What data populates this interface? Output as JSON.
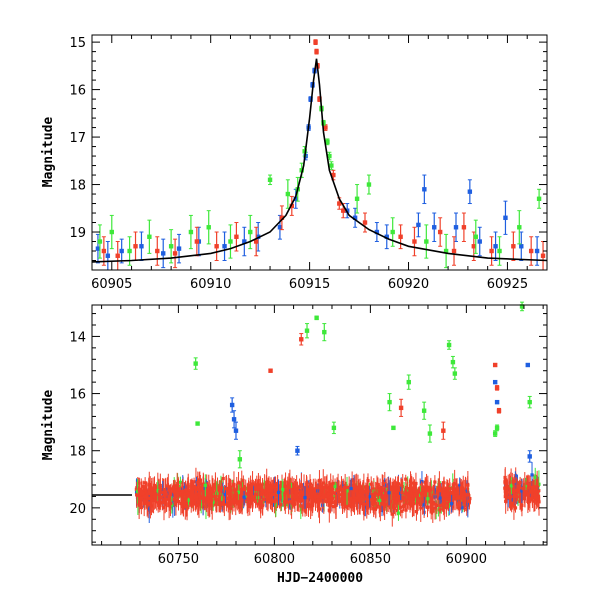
{
  "colors": {
    "blue": "#1f5fe0",
    "red": "#f0402a",
    "green": "#3ee83a",
    "axis": "#000000",
    "model": "#000000"
  },
  "chart_data": [
    {
      "type": "scatter",
      "title": "",
      "xlabel": "",
      "ylabel": "Magnitude",
      "xlim": [
        60904,
        60927
      ],
      "ylim": [
        19.8,
        14.85
      ],
      "y_inverted": true,
      "grid": false,
      "xticks": [
        60905,
        60910,
        60915,
        60920,
        60925
      ],
      "yticks": [
        15,
        16,
        17,
        18,
        19
      ],
      "model_curve": {
        "x": [
          60904,
          60906,
          60908,
          60910,
          60911,
          60912,
          60913,
          60913.8,
          60914.3,
          60914.7,
          60915.0,
          60915.2,
          60915.35,
          60915.5,
          60915.7,
          60916.0,
          60916.5,
          60917.0,
          60918.0,
          60919.0,
          60920.0,
          60922.0,
          60924.0,
          60927.0
        ],
        "y": [
          19.63,
          19.6,
          19.55,
          19.45,
          19.35,
          19.2,
          19.0,
          18.65,
          18.25,
          17.6,
          16.6,
          15.8,
          15.35,
          15.9,
          16.9,
          17.7,
          18.3,
          18.65,
          18.95,
          19.15,
          19.3,
          19.45,
          19.55,
          19.6
        ]
      },
      "series": [
        {
          "color": "blue",
          "points": [
            {
              "x": 60904.3,
              "y": 19.35,
              "err": 0.3
            },
            {
              "x": 60904.8,
              "y": 19.5,
              "err": 0.3
            },
            {
              "x": 60905.5,
              "y": 19.4,
              "err": 0.25
            },
            {
              "x": 60906.5,
              "y": 19.3,
              "err": 0.3
            },
            {
              "x": 60907.6,
              "y": 19.45,
              "err": 0.3
            },
            {
              "x": 60908.4,
              "y": 19.35,
              "err": 0.3
            },
            {
              "x": 60909.4,
              "y": 19.2,
              "err": 0.3
            },
            {
              "x": 60910.7,
              "y": 19.3,
              "err": 0.3
            },
            {
              "x": 60911.7,
              "y": 19.2,
              "err": 0.3
            },
            {
              "x": 60912.4,
              "y": 19.1,
              "err": 0.3
            },
            {
              "x": 60913.5,
              "y": 18.9,
              "err": 0.25
            },
            {
              "x": 60914.3,
              "y": 18.3,
              "err": 0.2
            },
            {
              "x": 60914.8,
              "y": 17.4,
              "err": 0.08
            },
            {
              "x": 60914.95,
              "y": 16.8,
              "err": 0.06
            },
            {
              "x": 60915.05,
              "y": 16.2,
              "err": 0.05
            },
            {
              "x": 60915.15,
              "y": 15.9,
              "err": 0.05
            },
            {
              "x": 60915.25,
              "y": 15.6,
              "err": 0.05
            },
            {
              "x": 60916.9,
              "y": 18.55,
              "err": 0.15
            },
            {
              "x": 60917.3,
              "y": 18.7,
              "err": 0.2
            },
            {
              "x": 60918.4,
              "y": 19.0,
              "err": 0.2
            },
            {
              "x": 60918.9,
              "y": 19.1,
              "err": 0.25
            },
            {
              "x": 60920.5,
              "y": 18.85,
              "err": 0.25
            },
            {
              "x": 60920.8,
              "y": 18.1,
              "err": 0.3
            },
            {
              "x": 60921.3,
              "y": 18.9,
              "err": 0.3
            },
            {
              "x": 60922.4,
              "y": 18.9,
              "err": 0.3
            },
            {
              "x": 60923.1,
              "y": 18.15,
              "err": 0.25
            },
            {
              "x": 60923.6,
              "y": 19.2,
              "err": 0.3
            },
            {
              "x": 60924.4,
              "y": 19.3,
              "err": 0.3
            },
            {
              "x": 60924.9,
              "y": 18.7,
              "err": 0.35
            },
            {
              "x": 60925.7,
              "y": 19.3,
              "err": 0.3
            },
            {
              "x": 60926.5,
              "y": 19.4,
              "err": 0.3
            }
          ]
        },
        {
          "color": "red",
          "points": [
            {
              "x": 60904.6,
              "y": 19.4,
              "err": 0.3
            },
            {
              "x": 60905.3,
              "y": 19.5,
              "err": 0.3
            },
            {
              "x": 60906.2,
              "y": 19.3,
              "err": 0.3
            },
            {
              "x": 60907.3,
              "y": 19.4,
              "err": 0.3
            },
            {
              "x": 60908.2,
              "y": 19.45,
              "err": 0.3
            },
            {
              "x": 60909.3,
              "y": 19.2,
              "err": 0.3
            },
            {
              "x": 60910.3,
              "y": 19.3,
              "err": 0.3
            },
            {
              "x": 60911.3,
              "y": 19.1,
              "err": 0.3
            },
            {
              "x": 60912.3,
              "y": 19.2,
              "err": 0.3
            },
            {
              "x": 60913.6,
              "y": 18.7,
              "err": 0.25
            },
            {
              "x": 60914.1,
              "y": 18.45,
              "err": 0.2
            },
            {
              "x": 60915.3,
              "y": 15.0,
              "err": 0.05
            },
            {
              "x": 60915.35,
              "y": 15.2,
              "err": 0.05
            },
            {
              "x": 60915.4,
              "y": 15.5,
              "err": 0.05
            },
            {
              "x": 60915.5,
              "y": 16.2,
              "err": 0.05
            },
            {
              "x": 60915.8,
              "y": 16.8,
              "err": 0.06
            },
            {
              "x": 60916.2,
              "y": 17.8,
              "err": 0.1
            },
            {
              "x": 60916.5,
              "y": 18.4,
              "err": 0.12
            },
            {
              "x": 60916.7,
              "y": 18.55,
              "err": 0.15
            },
            {
              "x": 60917.8,
              "y": 18.8,
              "err": 0.2
            },
            {
              "x": 60919.6,
              "y": 19.1,
              "err": 0.25
            },
            {
              "x": 60920.3,
              "y": 19.2,
              "err": 0.3
            },
            {
              "x": 60921.6,
              "y": 19.0,
              "err": 0.3
            },
            {
              "x": 60922.3,
              "y": 19.4,
              "err": 0.3
            },
            {
              "x": 60922.8,
              "y": 18.9,
              "err": 0.3
            },
            {
              "x": 60923.3,
              "y": 19.3,
              "err": 0.3
            },
            {
              "x": 60924.2,
              "y": 19.4,
              "err": 0.3
            },
            {
              "x": 60925.3,
              "y": 19.3,
              "err": 0.3
            },
            {
              "x": 60926.2,
              "y": 19.4,
              "err": 0.3
            },
            {
              "x": 60926.8,
              "y": 19.5,
              "err": 0.3
            }
          ]
        },
        {
          "color": "green",
          "points": [
            {
              "x": 60904.4,
              "y": 19.2,
              "err": 0.35
            },
            {
              "x": 60905.0,
              "y": 19.0,
              "err": 0.35
            },
            {
              "x": 60905.9,
              "y": 19.4,
              "err": 0.3
            },
            {
              "x": 60906.9,
              "y": 19.1,
              "err": 0.35
            },
            {
              "x": 60908.0,
              "y": 19.3,
              "err": 0.35
            },
            {
              "x": 60909.0,
              "y": 19.0,
              "err": 0.35
            },
            {
              "x": 60909.9,
              "y": 18.9,
              "err": 0.35
            },
            {
              "x": 60911.0,
              "y": 19.2,
              "err": 0.35
            },
            {
              "x": 60912.0,
              "y": 19.0,
              "err": 0.35
            },
            {
              "x": 60913.0,
              "y": 17.9,
              "err": 0.1
            },
            {
              "x": 60913.9,
              "y": 18.2,
              "err": 0.3
            },
            {
              "x": 60914.4,
              "y": 18.1,
              "err": 0.25
            },
            {
              "x": 60914.6,
              "y": 17.7,
              "err": 0.15
            },
            {
              "x": 60914.75,
              "y": 17.3,
              "err": 0.1
            },
            {
              "x": 60915.6,
              "y": 16.4,
              "err": 0.05
            },
            {
              "x": 60915.7,
              "y": 16.7,
              "err": 0.05
            },
            {
              "x": 60915.9,
              "y": 17.1,
              "err": 0.06
            },
            {
              "x": 60916.0,
              "y": 17.4,
              "err": 0.08
            },
            {
              "x": 60916.1,
              "y": 17.6,
              "err": 0.08
            },
            {
              "x": 60917.4,
              "y": 18.3,
              "err": 0.3
            },
            {
              "x": 60918.0,
              "y": 18.0,
              "err": 0.2
            },
            {
              "x": 60919.2,
              "y": 19.0,
              "err": 0.3
            },
            {
              "x": 60920.9,
              "y": 19.2,
              "err": 0.35
            },
            {
              "x": 60921.9,
              "y": 19.4,
              "err": 0.35
            },
            {
              "x": 60923.4,
              "y": 19.1,
              "err": 0.35
            },
            {
              "x": 60924.6,
              "y": 19.4,
              "err": 0.3
            },
            {
              "x": 60925.6,
              "y": 18.9,
              "err": 0.35
            },
            {
              "x": 60926.6,
              "y": 18.3,
              "err": 0.2
            }
          ]
        }
      ]
    },
    {
      "type": "scatter",
      "title": "",
      "xlabel": "HJD−2400000",
      "ylabel": "Magnitude",
      "xlim": [
        60705,
        60942
      ],
      "ylim": [
        21.3,
        12.9
      ],
      "y_inverted": true,
      "grid": false,
      "xticks": [
        60750,
        60800,
        60850,
        60900
      ],
      "yticks": [
        14,
        16,
        18,
        20
      ],
      "baseline": {
        "y": 19.55
      },
      "bands": [
        {
          "x_start": 60728,
          "x_end": 60790,
          "y_center": 19.55,
          "spread": 0.45,
          "colors": [
            "red",
            "blue",
            "green"
          ]
        },
        {
          "x_start": 60790,
          "x_end": 60845,
          "y_center": 19.55,
          "spread": 0.45,
          "colors": [
            "red",
            "blue",
            "green"
          ]
        },
        {
          "x_start": 60845,
          "x_end": 60902,
          "y_center": 19.6,
          "spread": 0.5,
          "colors": [
            "red",
            "blue",
            "green"
          ]
        },
        {
          "x_start": 60920,
          "x_end": 60938,
          "y_center": 19.4,
          "spread": 0.5,
          "colors": [
            "red",
            "blue",
            "green"
          ]
        }
      ],
      "series": [
        {
          "color": "green",
          "points": [
            {
              "x": 60759,
              "y": 14.95,
              "err": 0.2
            },
            {
              "x": 60760,
              "y": 17.05,
              "err": 0.05
            },
            {
              "x": 60782,
              "y": 18.3,
              "err": 0.3
            },
            {
              "x": 60817,
              "y": 13.8,
              "err": 0.25
            },
            {
              "x": 60822,
              "y": 13.35,
              "err": 0.06
            },
            {
              "x": 60826,
              "y": 13.85,
              "err": 0.3
            },
            {
              "x": 60831,
              "y": 17.2,
              "err": 0.2
            },
            {
              "x": 60860,
              "y": 16.3,
              "err": 0.3
            },
            {
              "x": 60862,
              "y": 17.2,
              "err": 0.05
            },
            {
              "x": 60870,
              "y": 15.6,
              "err": 0.25
            },
            {
              "x": 60878,
              "y": 16.6,
              "err": 0.3
            },
            {
              "x": 60881,
              "y": 17.4,
              "err": 0.3
            },
            {
              "x": 60891,
              "y": 14.3,
              "err": 0.15
            },
            {
              "x": 60893,
              "y": 14.9,
              "err": 0.2
            },
            {
              "x": 60894,
              "y": 15.3,
              "err": 0.2
            },
            {
              "x": 60929,
              "y": 12.95,
              "err": 0.15
            },
            {
              "x": 60933,
              "y": 16.3,
              "err": 0.2
            },
            {
              "x": 60915,
              "y": 17.4,
              "err": 0.1
            },
            {
              "x": 60916,
              "y": 17.2,
              "err": 0.1
            }
          ]
        },
        {
          "color": "red",
          "points": [
            {
              "x": 60798,
              "y": 15.2,
              "err": 0.05
            },
            {
              "x": 60814,
              "y": 14.1,
              "err": 0.2
            },
            {
              "x": 60866,
              "y": 16.5,
              "err": 0.3
            },
            {
              "x": 60888,
              "y": 17.3,
              "err": 0.3
            },
            {
              "x": 60915,
              "y": 15.0,
              "err": 0.05
            },
            {
              "x": 60916,
              "y": 15.8,
              "err": 0.08
            },
            {
              "x": 60917,
              "y": 16.6,
              "err": 0.08
            }
          ]
        },
        {
          "color": "blue",
          "points": [
            {
              "x": 60778,
              "y": 16.4,
              "err": 0.25
            },
            {
              "x": 60779,
              "y": 16.9,
              "err": 0.3
            },
            {
              "x": 60780,
              "y": 17.3,
              "err": 0.3
            },
            {
              "x": 60812,
              "y": 18.0,
              "err": 0.15
            },
            {
              "x": 60915,
              "y": 15.6,
              "err": 0.05
            },
            {
              "x": 60916,
              "y": 16.3,
              "err": 0.05
            },
            {
              "x": 60932,
              "y": 15.0,
              "err": 0.05
            },
            {
              "x": 60933,
              "y": 18.2,
              "err": 0.2
            }
          ]
        }
      ]
    }
  ]
}
